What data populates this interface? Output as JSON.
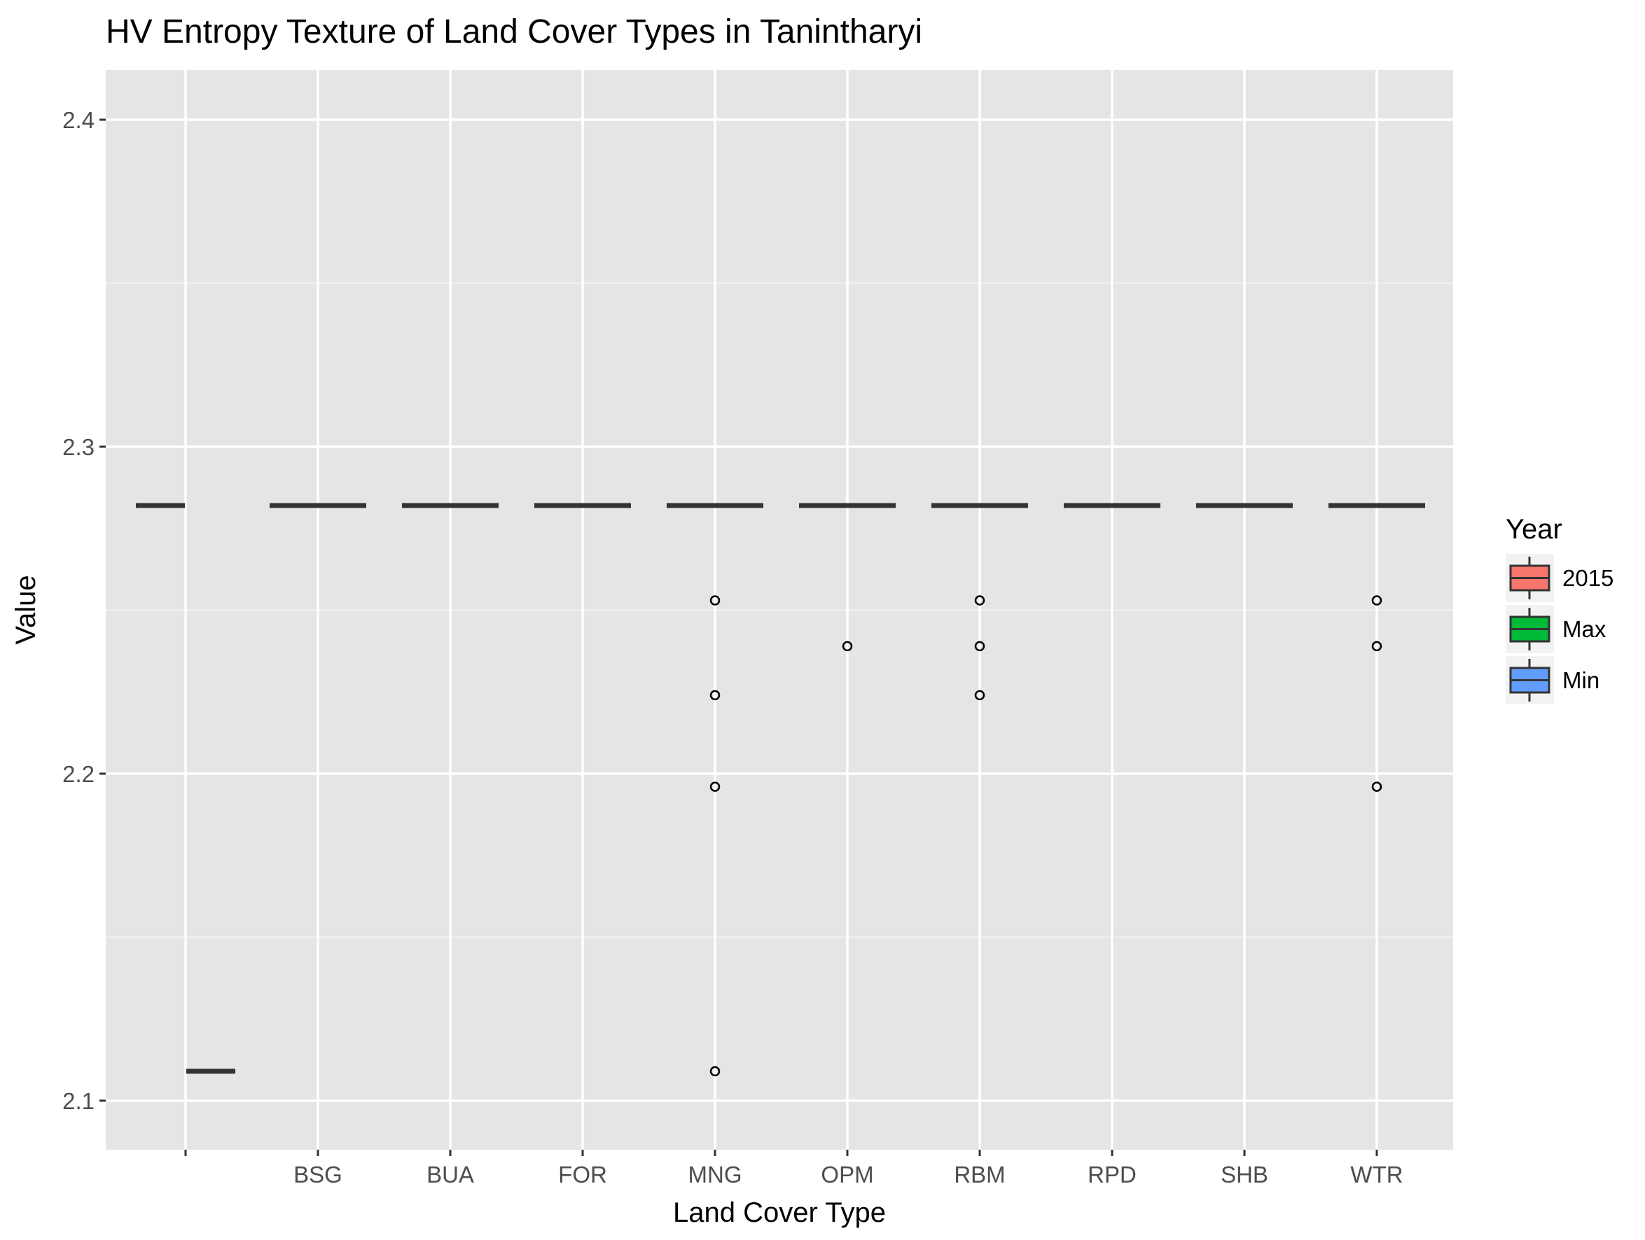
{
  "chart_data": {
    "type": "boxplot",
    "title": "HV Entropy Texture of Land Cover Types in Tanintharyi",
    "xlabel": "Land Cover Type",
    "ylabel": "Value",
    "categories": [
      "",
      "BSG",
      "BUA",
      "FOR",
      "MNG",
      "OPM",
      "RBM",
      "RPD",
      "SHB",
      "WTR"
    ],
    "ylim": [
      2.085,
      2.415
    ],
    "y_ticks": [
      2.1,
      2.2,
      2.3,
      2.4
    ],
    "y_tick_labels": [
      "2.1",
      "2.2",
      "2.3",
      "2.4"
    ],
    "grid": true,
    "legend": {
      "title": "Year",
      "position": "right",
      "entries": [
        {
          "label": "2015",
          "color": "#F8766D"
        },
        {
          "label": "Max",
          "color": "#00BA38"
        },
        {
          "label": "Min",
          "color": "#619CFF"
        }
      ]
    },
    "boxes": [
      {
        "category": "",
        "group": "2015",
        "median": 2.282
      },
      {
        "category": "",
        "group": "Min",
        "median": 2.109
      },
      {
        "category": "BSG",
        "group": "Max",
        "median": 2.282
      },
      {
        "category": "BUA",
        "group": "Max",
        "median": 2.282
      },
      {
        "category": "FOR",
        "group": "Max",
        "median": 2.282
      },
      {
        "category": "MNG",
        "group": "Max",
        "median": 2.282
      },
      {
        "category": "OPM",
        "group": "Max",
        "median": 2.282
      },
      {
        "category": "RBM",
        "group": "Max",
        "median": 2.282
      },
      {
        "category": "RPD",
        "group": "Max",
        "median": 2.282
      },
      {
        "category": "SHB",
        "group": "Max",
        "median": 2.282
      },
      {
        "category": "WTR",
        "group": "Max",
        "median": 2.282
      }
    ],
    "outliers": [
      {
        "category": "MNG",
        "values": [
          2.253,
          2.224,
          2.196,
          2.109
        ]
      },
      {
        "category": "OPM",
        "values": [
          2.239
        ]
      },
      {
        "category": "RBM",
        "values": [
          2.253,
          2.239,
          2.224
        ]
      },
      {
        "category": "WTR",
        "values": [
          2.253,
          2.239,
          2.196
        ]
      }
    ]
  }
}
